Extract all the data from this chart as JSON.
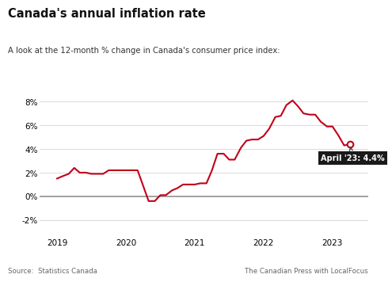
{
  "title": "Canada's annual inflation rate",
  "subtitle": "A look at the 12-month % change in Canada's consumer price index:",
  "source_left": "Source:  Statistics Canada",
  "source_right": "The Canadian Press with LocalFocus",
  "line_color": "#c0001a",
  "background_color": "#ffffff",
  "annotation_text": "April '23: 4.4%",
  "annotation_box_color": "#1a1a1a",
  "annotation_text_color": "#ffffff",
  "yticks": [
    -2,
    0,
    2,
    4,
    6,
    8
  ],
  "ylim": [
    -3.2,
    9.8
  ],
  "xlim": [
    2018.75,
    2023.52
  ],
  "data": [
    [
      2019.0,
      1.5
    ],
    [
      2019.08,
      1.7
    ],
    [
      2019.17,
      1.9
    ],
    [
      2019.25,
      2.4
    ],
    [
      2019.33,
      2.0
    ],
    [
      2019.42,
      2.0
    ],
    [
      2019.5,
      1.9
    ],
    [
      2019.58,
      1.9
    ],
    [
      2019.67,
      1.9
    ],
    [
      2019.75,
      2.2
    ],
    [
      2019.83,
      2.2
    ],
    [
      2019.92,
      2.2
    ],
    [
      2020.0,
      2.2
    ],
    [
      2020.08,
      2.2
    ],
    [
      2020.17,
      2.2
    ],
    [
      2020.25,
      0.9
    ],
    [
      2020.33,
      -0.4
    ],
    [
      2020.42,
      -0.4
    ],
    [
      2020.5,
      0.1
    ],
    [
      2020.58,
      0.1
    ],
    [
      2020.67,
      0.5
    ],
    [
      2020.75,
      0.7
    ],
    [
      2020.83,
      1.0
    ],
    [
      2020.92,
      1.0
    ],
    [
      2021.0,
      1.0
    ],
    [
      2021.08,
      1.1
    ],
    [
      2021.17,
      1.1
    ],
    [
      2021.25,
      2.2
    ],
    [
      2021.33,
      3.6
    ],
    [
      2021.42,
      3.6
    ],
    [
      2021.5,
      3.1
    ],
    [
      2021.58,
      3.1
    ],
    [
      2021.67,
      4.1
    ],
    [
      2021.75,
      4.7
    ],
    [
      2021.83,
      4.8
    ],
    [
      2021.92,
      4.8
    ],
    [
      2022.0,
      5.1
    ],
    [
      2022.08,
      5.7
    ],
    [
      2022.17,
      6.7
    ],
    [
      2022.25,
      6.8
    ],
    [
      2022.33,
      7.7
    ],
    [
      2022.42,
      8.1
    ],
    [
      2022.5,
      7.6
    ],
    [
      2022.58,
      7.0
    ],
    [
      2022.67,
      6.9
    ],
    [
      2022.75,
      6.9
    ],
    [
      2022.83,
      6.3
    ],
    [
      2022.92,
      5.9
    ],
    [
      2023.0,
      5.9
    ],
    [
      2023.08,
      5.2
    ],
    [
      2023.17,
      4.3
    ],
    [
      2023.25,
      4.4
    ]
  ]
}
